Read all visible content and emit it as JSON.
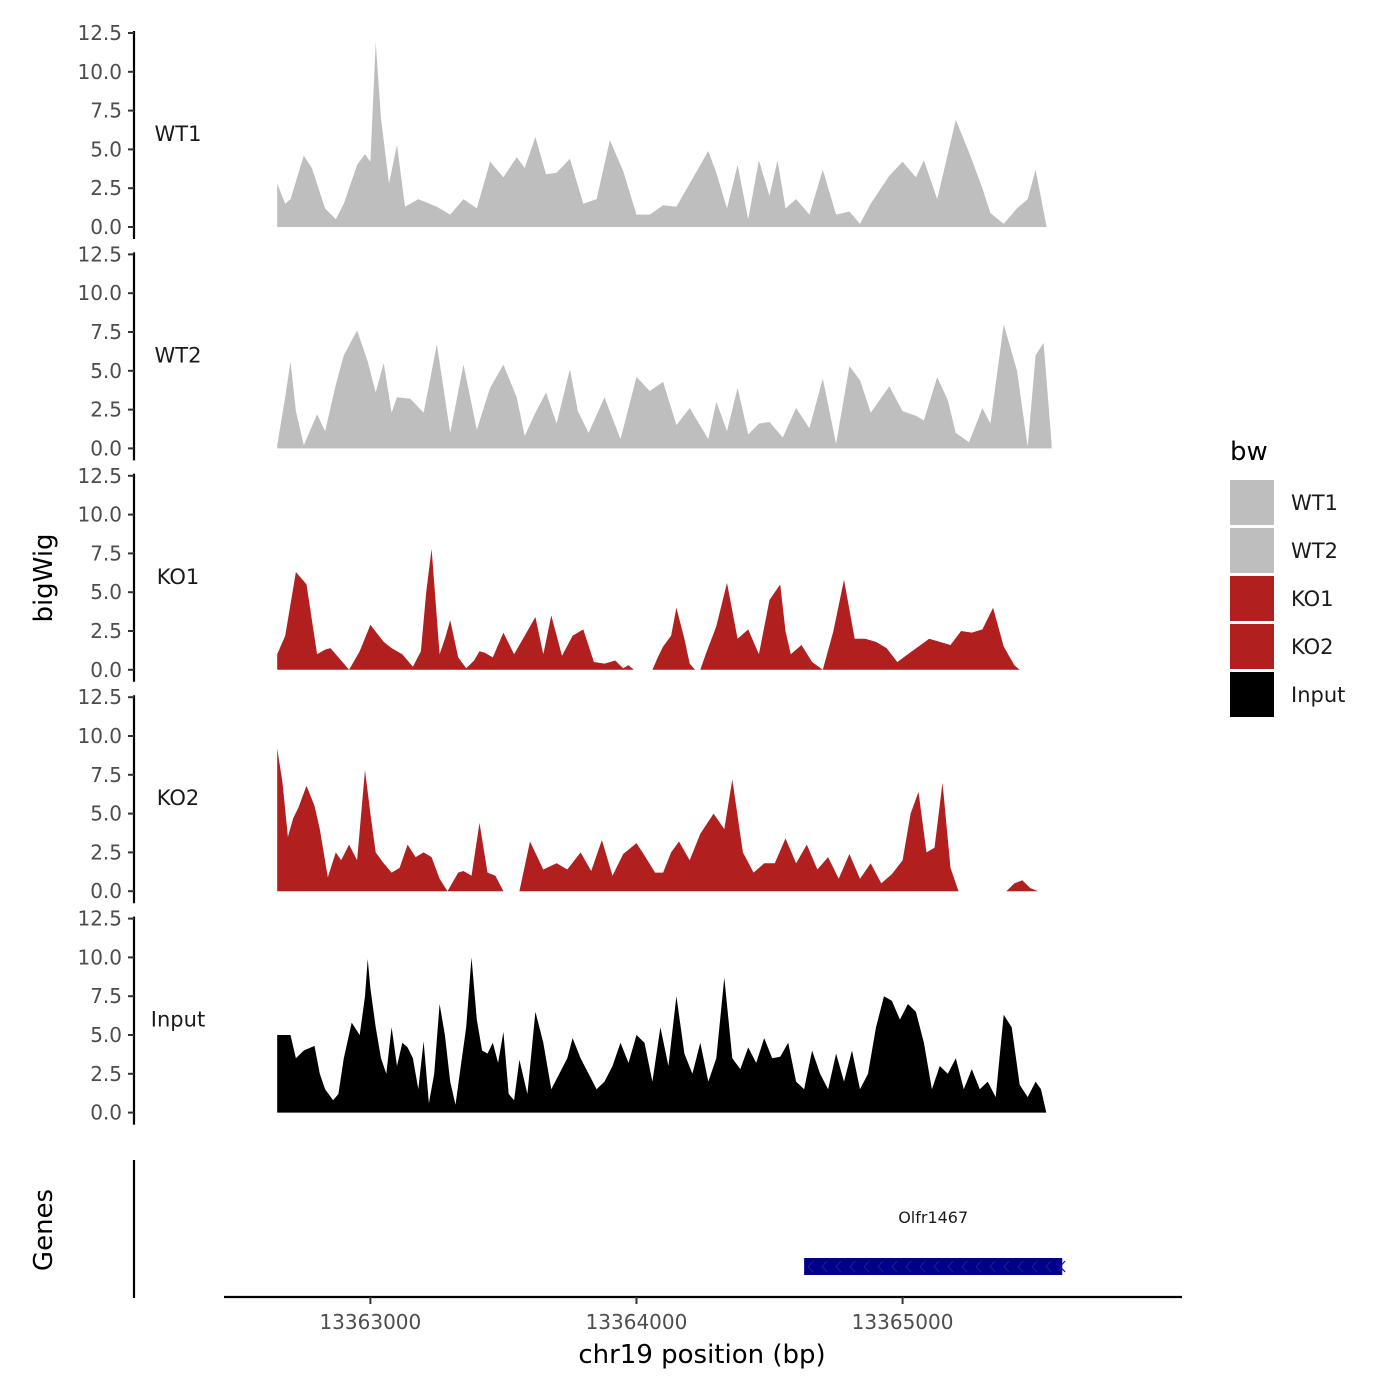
{
  "chart_data": {
    "type": "area",
    "chromosome": "chr19",
    "xlabel": "chr19 position (bp)",
    "ylabel": "bigWig",
    "genes_label": "Genes",
    "xlim": [
      13362450,
      13366050
    ],
    "x_ticks": [
      13363000,
      13364000,
      13365000
    ],
    "x_tick_labels": [
      "13363000",
      "13364000",
      "13365000"
    ],
    "ylim": [
      0,
      12.5
    ],
    "y_ticks": [
      0,
      2.5,
      5,
      7.5,
      10,
      12.5
    ],
    "y_tick_labels": [
      "0.0",
      "2.5",
      "5.0",
      "7.5",
      "10.0",
      "12.5"
    ],
    "legend": {
      "title": "bw",
      "entries": [
        {
          "label": "WT1",
          "color": "#bebebe"
        },
        {
          "label": "WT2",
          "color": "#bebebe"
        },
        {
          "label": "KO1",
          "color": "#b21f1f"
        },
        {
          "label": "KO2",
          "color": "#b21f1f"
        },
        {
          "label": "Input",
          "color": "#000000"
        }
      ]
    },
    "series": [
      {
        "name": "WT1",
        "color": "#bebebe",
        "x": [
          13362650,
          13362680,
          13362700,
          13362750,
          13362780,
          13362830,
          13362870,
          13362900,
          13362950,
          13362980,
          13363000,
          13363020,
          13363040,
          13363070,
          13363100,
          13363130,
          13363180,
          13363250,
          13363300,
          13363350,
          13363400,
          13363450,
          13363500,
          13363550,
          13363580,
          13363620,
          13363660,
          13363700,
          13363750,
          13363800,
          13363850,
          13363900,
          13363950,
          13364000,
          13364050,
          13364100,
          13364150,
          13364200,
          13364270,
          13364300,
          13364340,
          13364380,
          13364420,
          13364460,
          13364500,
          13364530,
          13364560,
          13364600,
          13364650,
          13364700,
          13364750,
          13364800,
          13364840,
          13364880,
          13364950,
          13365000,
          13365050,
          13365080,
          13365130,
          13365200,
          13365250,
          13365300,
          13365330,
          13365380,
          13365430,
          13365470,
          13365500,
          13365540
        ],
        "values": [
          2.8,
          1.5,
          1.8,
          4.6,
          3.8,
          1.2,
          0.5,
          1.5,
          4.0,
          4.7,
          4.2,
          11.9,
          7.0,
          2.8,
          5.3,
          1.3,
          1.8,
          1.3,
          0.8,
          1.8,
          1.2,
          4.2,
          3.2,
          4.5,
          3.8,
          5.8,
          3.4,
          3.5,
          4.4,
          1.5,
          1.8,
          5.6,
          3.6,
          0.8,
          0.8,
          1.4,
          1.3,
          2.8,
          4.9,
          3.5,
          1.2,
          4.0,
          0.5,
          4.3,
          2.0,
          4.3,
          1.2,
          1.8,
          0.8,
          3.7,
          0.8,
          1.0,
          0.2,
          1.5,
          3.3,
          4.2,
          3.2,
          4.3,
          1.8,
          6.9,
          4.8,
          2.5,
          0.9,
          0.2,
          1.2,
          1.8,
          3.7,
          0.1
        ]
      },
      {
        "name": "WT2",
        "color": "#bebebe",
        "x": [
          13362650,
          13362680,
          13362700,
          13362720,
          13362750,
          13362800,
          13362830,
          13362870,
          13362900,
          13362950,
          13362990,
          13363020,
          13363050,
          13363080,
          13363100,
          13363150,
          13363200,
          13363250,
          13363300,
          13363350,
          13363400,
          13363450,
          13363500,
          13363550,
          13363580,
          13363620,
          13363660,
          13363700,
          13363750,
          13363780,
          13363820,
          13363880,
          13363940,
          13364000,
          13364050,
          13364100,
          13364150,
          13364200,
          13364270,
          13364300,
          13364340,
          13364380,
          13364420,
          13364460,
          13364500,
          13364550,
          13364600,
          13364650,
          13364700,
          13364750,
          13364800,
          13364840,
          13364880,
          13364950,
          13365000,
          13365050,
          13365080,
          13365130,
          13365170,
          13365200,
          13365250,
          13365300,
          13365330,
          13365380,
          13365430,
          13365470,
          13365500,
          13365530,
          13365560
        ],
        "values": [
          0.2,
          3.3,
          5.6,
          2.4,
          0.2,
          2.2,
          1.1,
          4.1,
          6.0,
          7.6,
          5.6,
          3.6,
          5.5,
          2.3,
          3.3,
          3.2,
          2.3,
          6.7,
          1.0,
          5.4,
          1.2,
          3.9,
          5.4,
          3.3,
          0.8,
          2.3,
          3.6,
          1.6,
          5.1,
          2.4,
          1.0,
          3.3,
          0.6,
          4.6,
          3.7,
          4.3,
          1.5,
          2.6,
          0.6,
          3.0,
          1.1,
          3.9,
          0.9,
          1.6,
          1.7,
          0.7,
          2.6,
          1.3,
          4.5,
          0.3,
          5.3,
          4.4,
          2.3,
          4.0,
          2.4,
          2.1,
          1.8,
          4.6,
          3.1,
          1.0,
          0.4,
          2.6,
          1.6,
          8.0,
          5.0,
          0.1,
          6.0,
          6.8,
          0.3
        ]
      },
      {
        "name": "KO1",
        "color": "#b21f1f",
        "x": [
          13362650,
          13362680,
          13362720,
          13362760,
          13362800,
          13362830,
          13362850,
          13362870,
          13362920,
          13362960,
          13363000,
          13363050,
          13363080,
          13363120,
          13363160,
          13363190,
          13363210,
          13363230,
          13363260,
          13363280,
          13363300,
          13363330,
          13363360,
          13363390,
          13363410,
          13363430,
          13363460,
          13363500,
          13363540,
          13363580,
          13363620,
          13363650,
          13363680,
          13363720,
          13363760,
          13363800,
          13363840,
          13363880,
          13363920,
          13363950,
          13363970,
          13363990,
          13364040,
          13364060,
          13364080,
          13364100,
          13364130,
          13364150,
          13364180,
          13364200,
          13364220,
          13364240,
          13364260,
          13364300,
          13364340,
          13364380,
          13364420,
          13364460,
          13364500,
          13364540,
          13364560,
          13364580,
          13364620,
          13364660,
          13364700,
          13364740,
          13364780,
          13364820,
          13364860,
          13364900,
          13364940,
          13364980,
          13365020,
          13365060,
          13365100,
          13365140,
          13365180,
          13365220,
          13365260,
          13365300,
          13365340,
          13365380,
          13365420,
          13365440
        ],
        "values": [
          1.0,
          2.2,
          6.3,
          5.5,
          1.0,
          1.3,
          1.4,
          1.0,
          0.0,
          1.2,
          2.9,
          1.8,
          1.4,
          1.0,
          0.2,
          1.2,
          5.0,
          7.8,
          1.0,
          2.0,
          3.2,
          0.8,
          0.1,
          0.6,
          1.2,
          1.1,
          0.8,
          2.4,
          1.0,
          2.2,
          3.4,
          1.0,
          3.5,
          0.9,
          2.2,
          2.6,
          0.5,
          0.4,
          0.6,
          0.1,
          0.3,
          0.0,
          0.0,
          0.0,
          0.8,
          1.5,
          2.2,
          4.0,
          2.0,
          0.4,
          0.0,
          0.0,
          1.0,
          2.8,
          5.6,
          2.0,
          2.6,
          1.0,
          4.5,
          5.5,
          2.5,
          1.0,
          1.6,
          0.5,
          0.0,
          2.5,
          5.8,
          2.0,
          2.0,
          1.8,
          1.4,
          0.5,
          1.0,
          1.5,
          2.0,
          1.8,
          1.6,
          2.5,
          2.4,
          2.6,
          4.0,
          1.5,
          0.3,
          0.0
        ]
      },
      {
        "name": "KO2",
        "color": "#b21f1f",
        "x": [
          13362650,
          13362670,
          13362690,
          13362710,
          13362730,
          13362760,
          13362790,
          13362810,
          13362840,
          13362870,
          13362890,
          13362920,
          13362950,
          13362980,
          13363000,
          13363020,
          13363050,
          13363080,
          13363110,
          13363140,
          13363170,
          13363200,
          13363230,
          13363260,
          13363290,
          13363330,
          13363350,
          13363380,
          13363410,
          13363440,
          13363470,
          13363500,
          13363530,
          13363560,
          13363600,
          13363650,
          13363700,
          13363740,
          13363790,
          13363830,
          13363870,
          13363910,
          13363950,
          13364000,
          13364030,
          13364070,
          13364100,
          13364130,
          13364160,
          13364200,
          13364240,
          13364290,
          13364330,
          13364360,
          13364400,
          13364440,
          13364480,
          13364520,
          13364560,
          13364600,
          13364640,
          13364680,
          13364720,
          13364760,
          13364800,
          13364840,
          13364880,
          13364920,
          13364960,
          13365000,
          13365030,
          13365060,
          13365090,
          13365120,
          13365150,
          13365180,
          13365210,
          13365240,
          13365270,
          13365300,
          13365330,
          13365360,
          13365390,
          13365420,
          13365450,
          13365480,
          13365510
        ],
        "values": [
          9.2,
          7.0,
          3.5,
          4.7,
          5.4,
          6.8,
          5.5,
          4.0,
          0.9,
          2.5,
          2.0,
          3.0,
          2.0,
          7.8,
          5.0,
          2.5,
          1.8,
          1.2,
          1.5,
          3.0,
          2.2,
          2.5,
          2.2,
          0.8,
          0.0,
          1.2,
          1.3,
          1.0,
          4.4,
          1.2,
          1.0,
          0.0,
          0.0,
          0.0,
          3.2,
          1.4,
          1.8,
          1.4,
          2.5,
          1.3,
          3.3,
          1.0,
          2.4,
          3.1,
          2.3,
          1.2,
          1.2,
          2.5,
          3.2,
          2.0,
          3.7,
          5.0,
          4.0,
          7.2,
          2.5,
          1.2,
          1.8,
          1.8,
          3.4,
          1.8,
          3.0,
          1.4,
          2.2,
          0.8,
          2.4,
          0.8,
          1.8,
          0.5,
          1.1,
          2.0,
          5.0,
          6.4,
          2.5,
          2.8,
          7.0,
          1.5,
          0.0,
          0.0,
          0.0,
          0.0,
          0.0,
          0.0,
          0.0,
          0.5,
          0.7,
          0.2,
          0.0
        ]
      },
      {
        "name": "Input",
        "color": "#000000",
        "x": [
          13362650,
          13362660,
          13362700,
          13362720,
          13362750,
          13362790,
          13362810,
          13362830,
          13362860,
          13362880,
          13362900,
          13362930,
          13362960,
          13362980,
          13362990,
          13363000,
          13363020,
          13363040,
          13363060,
          13363080,
          13363100,
          13363120,
          13363140,
          13363160,
          13363180,
          13363200,
          13363220,
          13363240,
          13363260,
          13363280,
          13363300,
          13363320,
          13363340,
          13363360,
          13363380,
          13363400,
          13363420,
          13363440,
          13363460,
          13363480,
          13363500,
          13363520,
          13363540,
          13363560,
          13363590,
          13363620,
          13363650,
          13363680,
          13363710,
          13363740,
          13363760,
          13363790,
          13363820,
          13363850,
          13363880,
          13363910,
          13363940,
          13363970,
          13364000,
          13364030,
          13364060,
          13364090,
          13364120,
          13364150,
          13364180,
          13364210,
          13364240,
          13364270,
          13364300,
          13364330,
          13364360,
          13364390,
          13364420,
          13364450,
          13364480,
          13364510,
          13364540,
          13364570,
          13364600,
          13364630,
          13364660,
          13364690,
          13364720,
          13364750,
          13364780,
          13364810,
          13364840,
          13364870,
          13364900,
          13364930,
          13364960,
          13364990,
          13365020,
          13365050,
          13365080,
          13365110,
          13365140,
          13365170,
          13365200,
          13365230,
          13365260,
          13365290,
          13365320,
          13365350,
          13365380,
          13365410,
          13365440,
          13365470,
          13365500,
          13365520,
          13365540
        ],
        "values": [
          5.0,
          5.0,
          5.0,
          3.5,
          4.0,
          4.3,
          2.5,
          1.5,
          0.8,
          1.2,
          3.5,
          5.8,
          5.0,
          7.5,
          9.9,
          8.0,
          5.5,
          3.5,
          2.5,
          5.5,
          3.0,
          4.5,
          4.2,
          3.5,
          1.5,
          4.6,
          0.6,
          2.5,
          7.0,
          5.0,
          2.0,
          0.5,
          3.0,
          5.5,
          10.0,
          6.0,
          4.0,
          3.8,
          4.5,
          3.2,
          5.2,
          1.2,
          0.8,
          3.4,
          1.2,
          6.5,
          4.5,
          1.5,
          2.5,
          3.5,
          4.8,
          3.5,
          2.5,
          1.5,
          2.0,
          3.0,
          4.5,
          3.2,
          5.0,
          4.5,
          2.0,
          5.5,
          3.0,
          7.5,
          3.8,
          2.5,
          4.5,
          2.0,
          3.5,
          8.7,
          3.5,
          2.8,
          4.2,
          3.2,
          4.8,
          3.5,
          3.6,
          4.5,
          2.0,
          1.5,
          4.0,
          2.5,
          1.5,
          3.8,
          2.0,
          4.0,
          1.5,
          2.5,
          5.5,
          7.5,
          7.2,
          6.0,
          7.0,
          6.5,
          4.5,
          1.5,
          3.0,
          2.5,
          3.5,
          1.5,
          2.8,
          1.5,
          2.0,
          1.0,
          6.3,
          5.5,
          1.8,
          1.0,
          2.0,
          1.5,
          0.0
        ]
      }
    ],
    "genes": [
      {
        "name": "Olfr1467",
        "start": 13364630,
        "end": 13365600,
        "strand": "-",
        "color": "#00008b"
      }
    ]
  }
}
